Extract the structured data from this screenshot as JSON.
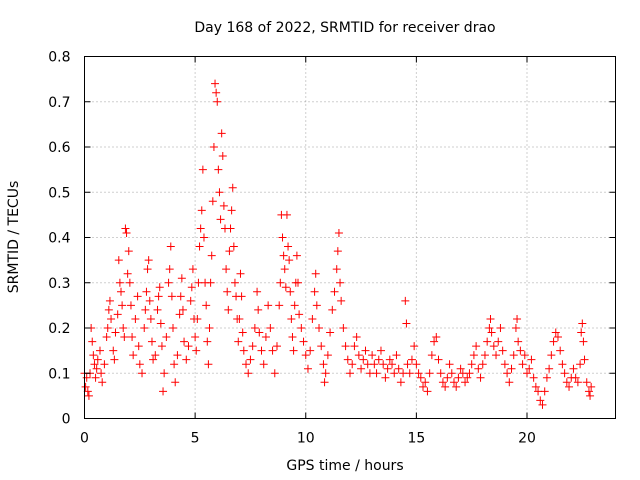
{
  "chart_data": {
    "type": "scatter",
    "title": "Day 168 of 2022, SRMTID for receiver drao",
    "xlabel": "GPS time / hours",
    "ylabel": "SRMTID / TECUs",
    "xlim": [
      0,
      24
    ],
    "ylim": [
      0,
      0.8
    ],
    "xticks": [
      0,
      5,
      10,
      15,
      20
    ],
    "xtick_labels": [
      "0",
      "5",
      "10",
      "15",
      "20"
    ],
    "yticks": [
      0,
      0.1,
      0.2,
      0.3,
      0.4,
      0.5,
      0.6,
      0.7,
      0.8
    ],
    "ytick_labels": [
      "0",
      "0.1",
      "0.2",
      "0.3",
      "0.4",
      "0.5",
      "0.6",
      "0.7",
      "0.8"
    ],
    "grid": true,
    "marker": "+",
    "marker_color": "#ff0000",
    "series": [
      {
        "name": "SRMTID",
        "points": [
          [
            0.0,
            0.1
          ],
          [
            0.05,
            0.07
          ],
          [
            0.1,
            0.09
          ],
          [
            0.15,
            0.06
          ],
          [
            0.2,
            0.05
          ],
          [
            0.25,
            0.1
          ],
          [
            0.3,
            0.2
          ],
          [
            0.35,
            0.17
          ],
          [
            0.4,
            0.14
          ],
          [
            0.45,
            0.12
          ],
          [
            0.5,
            0.09
          ],
          [
            0.55,
            0.11
          ],
          [
            0.6,
            0.13
          ],
          [
            0.7,
            0.15
          ],
          [
            0.75,
            0.1
          ],
          [
            0.8,
            0.08
          ],
          [
            0.9,
            0.12
          ],
          [
            1.0,
            0.18
          ],
          [
            1.05,
            0.2
          ],
          [
            1.1,
            0.24
          ],
          [
            1.15,
            0.26
          ],
          [
            1.2,
            0.22
          ],
          [
            1.3,
            0.15
          ],
          [
            1.35,
            0.13
          ],
          [
            1.4,
            0.19
          ],
          [
            1.5,
            0.23
          ],
          [
            1.55,
            0.35
          ],
          [
            1.6,
            0.3
          ],
          [
            1.65,
            0.28
          ],
          [
            1.7,
            0.25
          ],
          [
            1.75,
            0.2
          ],
          [
            1.8,
            0.18
          ],
          [
            1.85,
            0.42
          ],
          [
            1.9,
            0.41
          ],
          [
            1.95,
            0.32
          ],
          [
            2.0,
            0.37
          ],
          [
            2.05,
            0.3
          ],
          [
            2.1,
            0.25
          ],
          [
            2.15,
            0.18
          ],
          [
            2.2,
            0.14
          ],
          [
            2.3,
            0.22
          ],
          [
            2.4,
            0.27
          ],
          [
            2.45,
            0.16
          ],
          [
            2.5,
            0.12
          ],
          [
            2.6,
            0.1
          ],
          [
            2.7,
            0.2
          ],
          [
            2.75,
            0.24
          ],
          [
            2.8,
            0.28
          ],
          [
            2.85,
            0.33
          ],
          [
            2.9,
            0.35
          ],
          [
            2.95,
            0.26
          ],
          [
            3.0,
            0.22
          ],
          [
            3.05,
            0.17
          ],
          [
            3.1,
            0.13
          ],
          [
            3.2,
            0.14
          ],
          [
            3.3,
            0.24
          ],
          [
            3.35,
            0.27
          ],
          [
            3.4,
            0.29
          ],
          [
            3.45,
            0.21
          ],
          [
            3.5,
            0.16
          ],
          [
            3.55,
            0.06
          ],
          [
            3.6,
            0.1
          ],
          [
            3.7,
            0.18
          ],
          [
            3.8,
            0.3
          ],
          [
            3.85,
            0.33
          ],
          [
            3.9,
            0.38
          ],
          [
            3.95,
            0.27
          ],
          [
            4.0,
            0.2
          ],
          [
            4.05,
            0.12
          ],
          [
            4.1,
            0.08
          ],
          [
            4.2,
            0.14
          ],
          [
            4.3,
            0.23
          ],
          [
            4.35,
            0.27
          ],
          [
            4.4,
            0.31
          ],
          [
            4.45,
            0.24
          ],
          [
            4.5,
            0.17
          ],
          [
            4.6,
            0.13
          ],
          [
            4.7,
            0.16
          ],
          [
            4.8,
            0.26
          ],
          [
            4.85,
            0.29
          ],
          [
            4.9,
            0.33
          ],
          [
            4.95,
            0.22
          ],
          [
            5.0,
            0.18
          ],
          [
            5.05,
            0.15
          ],
          [
            5.1,
            0.22
          ],
          [
            5.15,
            0.3
          ],
          [
            5.2,
            0.38
          ],
          [
            5.25,
            0.42
          ],
          [
            5.3,
            0.46
          ],
          [
            5.35,
            0.55
          ],
          [
            5.4,
            0.4
          ],
          [
            5.45,
            0.3
          ],
          [
            5.5,
            0.25
          ],
          [
            5.55,
            0.17
          ],
          [
            5.6,
            0.12
          ],
          [
            5.65,
            0.2
          ],
          [
            5.7,
            0.3
          ],
          [
            5.75,
            0.36
          ],
          [
            5.8,
            0.48
          ],
          [
            5.85,
            0.6
          ],
          [
            5.9,
            0.74
          ],
          [
            5.95,
            0.72
          ],
          [
            6.0,
            0.7
          ],
          [
            6.05,
            0.55
          ],
          [
            6.1,
            0.5
          ],
          [
            6.15,
            0.44
          ],
          [
            6.2,
            0.63
          ],
          [
            6.25,
            0.58
          ],
          [
            6.3,
            0.47
          ],
          [
            6.35,
            0.42
          ],
          [
            6.4,
            0.33
          ],
          [
            6.45,
            0.28
          ],
          [
            6.5,
            0.24
          ],
          [
            6.55,
            0.37
          ],
          [
            6.6,
            0.42
          ],
          [
            6.65,
            0.46
          ],
          [
            6.7,
            0.51
          ],
          [
            6.75,
            0.38
          ],
          [
            6.8,
            0.3
          ],
          [
            6.85,
            0.27
          ],
          [
            6.9,
            0.22
          ],
          [
            6.95,
            0.17
          ],
          [
            7.0,
            0.22
          ],
          [
            7.05,
            0.32
          ],
          [
            7.1,
            0.27
          ],
          [
            7.15,
            0.19
          ],
          [
            7.2,
            0.15
          ],
          [
            7.3,
            0.12
          ],
          [
            7.4,
            0.1
          ],
          [
            7.5,
            0.13
          ],
          [
            7.6,
            0.16
          ],
          [
            7.7,
            0.2
          ],
          [
            7.8,
            0.28
          ],
          [
            7.85,
            0.24
          ],
          [
            7.9,
            0.19
          ],
          [
            8.0,
            0.15
          ],
          [
            8.1,
            0.12
          ],
          [
            8.2,
            0.18
          ],
          [
            8.3,
            0.25
          ],
          [
            8.4,
            0.2
          ],
          [
            8.5,
            0.15
          ],
          [
            8.6,
            0.1
          ],
          [
            8.7,
            0.16
          ],
          [
            8.8,
            0.25
          ],
          [
            8.85,
            0.3
          ],
          [
            8.9,
            0.45
          ],
          [
            8.95,
            0.4
          ],
          [
            9.0,
            0.36
          ],
          [
            9.05,
            0.33
          ],
          [
            9.1,
            0.29
          ],
          [
            9.15,
            0.45
          ],
          [
            9.2,
            0.38
          ],
          [
            9.25,
            0.35
          ],
          [
            9.3,
            0.28
          ],
          [
            9.35,
            0.22
          ],
          [
            9.4,
            0.18
          ],
          [
            9.45,
            0.15
          ],
          [
            9.5,
            0.25
          ],
          [
            9.55,
            0.3
          ],
          [
            9.6,
            0.36
          ],
          [
            9.65,
            0.3
          ],
          [
            9.7,
            0.23
          ],
          [
            9.8,
            0.2
          ],
          [
            9.9,
            0.17
          ],
          [
            10.0,
            0.14
          ],
          [
            10.1,
            0.11
          ],
          [
            10.2,
            0.15
          ],
          [
            10.3,
            0.22
          ],
          [
            10.4,
            0.28
          ],
          [
            10.45,
            0.32
          ],
          [
            10.5,
            0.25
          ],
          [
            10.6,
            0.2
          ],
          [
            10.7,
            0.16
          ],
          [
            10.8,
            0.12
          ],
          [
            10.85,
            0.08
          ],
          [
            10.9,
            0.1
          ],
          [
            11.0,
            0.14
          ],
          [
            11.1,
            0.19
          ],
          [
            11.2,
            0.24
          ],
          [
            11.3,
            0.28
          ],
          [
            11.4,
            0.33
          ],
          [
            11.45,
            0.37
          ],
          [
            11.5,
            0.41
          ],
          [
            11.55,
            0.3
          ],
          [
            11.6,
            0.26
          ],
          [
            11.7,
            0.2
          ],
          [
            11.8,
            0.16
          ],
          [
            11.9,
            0.13
          ],
          [
            12.0,
            0.1
          ],
          [
            12.1,
            0.12
          ],
          [
            12.2,
            0.16
          ],
          [
            12.3,
            0.18
          ],
          [
            12.4,
            0.14
          ],
          [
            12.5,
            0.11
          ],
          [
            12.6,
            0.13
          ],
          [
            12.7,
            0.15
          ],
          [
            12.8,
            0.12
          ],
          [
            12.9,
            0.1
          ],
          [
            13.0,
            0.14
          ],
          [
            13.1,
            0.12
          ],
          [
            13.2,
            0.1
          ],
          [
            13.3,
            0.13
          ],
          [
            13.4,
            0.15
          ],
          [
            13.5,
            0.12
          ],
          [
            13.6,
            0.09
          ],
          [
            13.7,
            0.11
          ],
          [
            13.8,
            0.13
          ],
          [
            13.9,
            0.12
          ],
          [
            14.0,
            0.1
          ],
          [
            14.1,
            0.14
          ],
          [
            14.2,
            0.11
          ],
          [
            14.3,
            0.08
          ],
          [
            14.4,
            0.1
          ],
          [
            14.5,
            0.26
          ],
          [
            14.55,
            0.21
          ],
          [
            14.6,
            0.12
          ],
          [
            14.7,
            0.1
          ],
          [
            14.8,
            0.13
          ],
          [
            14.9,
            0.16
          ],
          [
            15.0,
            0.12
          ],
          [
            15.1,
            0.1
          ],
          [
            15.2,
            0.09
          ],
          [
            15.3,
            0.07
          ],
          [
            15.4,
            0.08
          ],
          [
            15.5,
            0.06
          ],
          [
            15.6,
            0.1
          ],
          [
            15.7,
            0.14
          ],
          [
            15.8,
            0.17
          ],
          [
            15.9,
            0.18
          ],
          [
            16.0,
            0.13
          ],
          [
            16.1,
            0.1
          ],
          [
            16.2,
            0.08
          ],
          [
            16.3,
            0.07
          ],
          [
            16.4,
            0.09
          ],
          [
            16.5,
            0.12
          ],
          [
            16.6,
            0.1
          ],
          [
            16.7,
            0.08
          ],
          [
            16.8,
            0.07
          ],
          [
            16.9,
            0.09
          ],
          [
            17.0,
            0.11
          ],
          [
            17.1,
            0.1
          ],
          [
            17.2,
            0.08
          ],
          [
            17.3,
            0.09
          ],
          [
            17.4,
            0.1
          ],
          [
            17.5,
            0.12
          ],
          [
            17.6,
            0.14
          ],
          [
            17.7,
            0.16
          ],
          [
            17.8,
            0.11
          ],
          [
            17.9,
            0.09
          ],
          [
            18.0,
            0.12
          ],
          [
            18.1,
            0.14
          ],
          [
            18.2,
            0.17
          ],
          [
            18.3,
            0.2
          ],
          [
            18.35,
            0.22
          ],
          [
            18.4,
            0.19
          ],
          [
            18.5,
            0.16
          ],
          [
            18.6,
            0.14
          ],
          [
            18.7,
            0.17
          ],
          [
            18.8,
            0.2
          ],
          [
            18.9,
            0.15
          ],
          [
            19.0,
            0.12
          ],
          [
            19.1,
            0.1
          ],
          [
            19.2,
            0.08
          ],
          [
            19.3,
            0.11
          ],
          [
            19.4,
            0.14
          ],
          [
            19.5,
            0.2
          ],
          [
            19.55,
            0.22
          ],
          [
            19.6,
            0.17
          ],
          [
            19.7,
            0.15
          ],
          [
            19.8,
            0.12
          ],
          [
            19.9,
            0.14
          ],
          [
            20.0,
            0.1
          ],
          [
            20.1,
            0.11
          ],
          [
            20.2,
            0.13
          ],
          [
            20.3,
            0.09
          ],
          [
            20.4,
            0.07
          ],
          [
            20.5,
            0.06
          ],
          [
            20.6,
            0.04
          ],
          [
            20.7,
            0.03
          ],
          [
            20.8,
            0.06
          ],
          [
            20.9,
            0.09
          ],
          [
            21.0,
            0.11
          ],
          [
            21.1,
            0.14
          ],
          [
            21.2,
            0.17
          ],
          [
            21.3,
            0.19
          ],
          [
            21.4,
            0.18
          ],
          [
            21.5,
            0.15
          ],
          [
            21.6,
            0.12
          ],
          [
            21.7,
            0.1
          ],
          [
            21.8,
            0.08
          ],
          [
            21.9,
            0.07
          ],
          [
            22.0,
            0.09
          ],
          [
            22.1,
            0.11
          ],
          [
            22.2,
            0.09
          ],
          [
            22.3,
            0.08
          ],
          [
            22.4,
            0.12
          ],
          [
            22.45,
            0.19
          ],
          [
            22.5,
            0.21
          ],
          [
            22.55,
            0.17
          ],
          [
            22.6,
            0.13
          ],
          [
            22.7,
            0.08
          ],
          [
            22.8,
            0.06
          ],
          [
            22.85,
            0.05
          ],
          [
            22.9,
            0.07
          ]
        ]
      }
    ]
  }
}
